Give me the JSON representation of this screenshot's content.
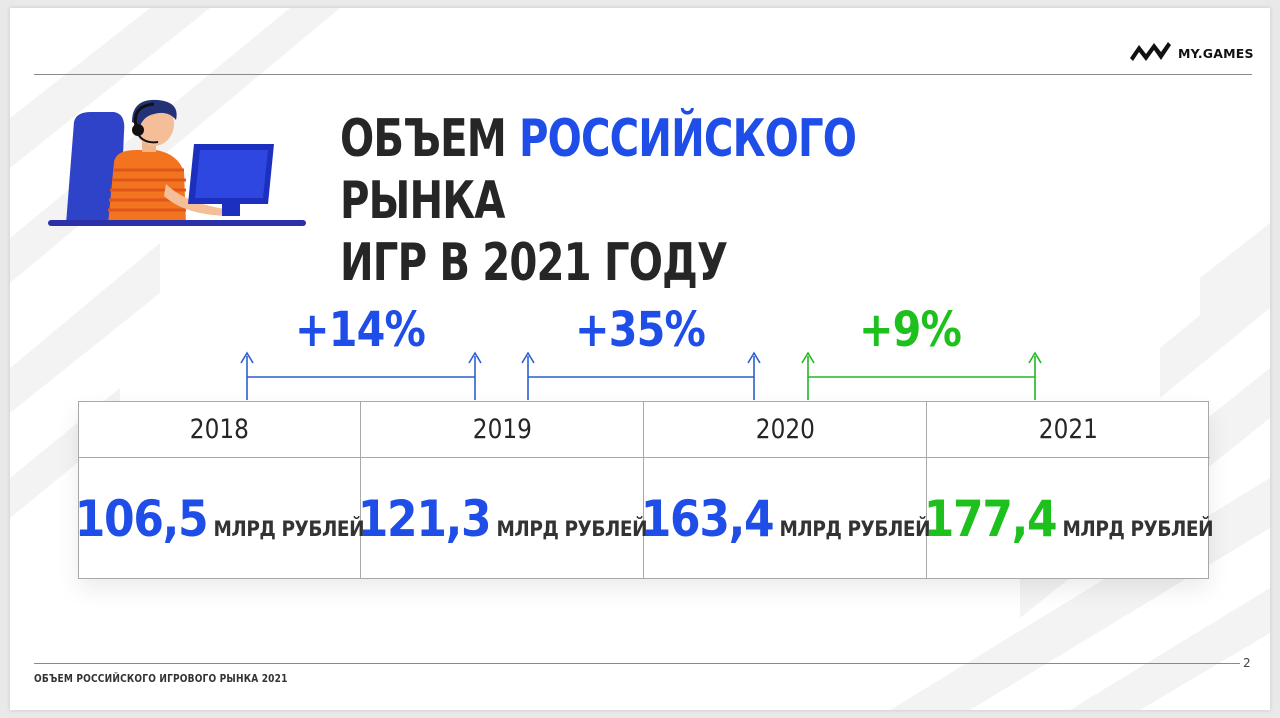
{
  "brand": {
    "logo_text": "MY.GAMES"
  },
  "title": {
    "part1": "ОБЪЕМ ",
    "highlight": "РОССИЙСКОГО",
    "part2": " РЫНКА",
    "line2": "ИГР В 2021 ГОДУ"
  },
  "colors": {
    "blue": "#1f4de8",
    "green": "#1ec01e",
    "dark": "#262626",
    "bracket_blue": "#2b5fd0",
    "bracket_green": "#22b822"
  },
  "growth": [
    {
      "label": "+14%",
      "color": "blue"
    },
    {
      "label": "+35%",
      "color": "blue"
    },
    {
      "label": "+9%",
      "color": "green"
    }
  ],
  "market": {
    "years": [
      "2018",
      "2019",
      "2020",
      "2021"
    ],
    "values": [
      {
        "value": "106,5",
        "unit": "МЛРД РУБЛЕЙ",
        "color": "blue"
      },
      {
        "value": "121,3",
        "unit": "МЛРД РУБЛЕЙ",
        "color": "blue"
      },
      {
        "value": "163,4",
        "unit": "МЛРД РУБЛЕЙ",
        "color": "blue"
      },
      {
        "value": "177,4",
        "unit": "МЛРД РУБЛЕЙ",
        "color": "green"
      }
    ]
  },
  "footer": {
    "text": "ОБЪЕМ РОССИЙСКОГО ИГРОВОГО РЫНКА 2021",
    "page_number": "2"
  },
  "illustration": {
    "icon": "gamer-at-computer-icon"
  }
}
